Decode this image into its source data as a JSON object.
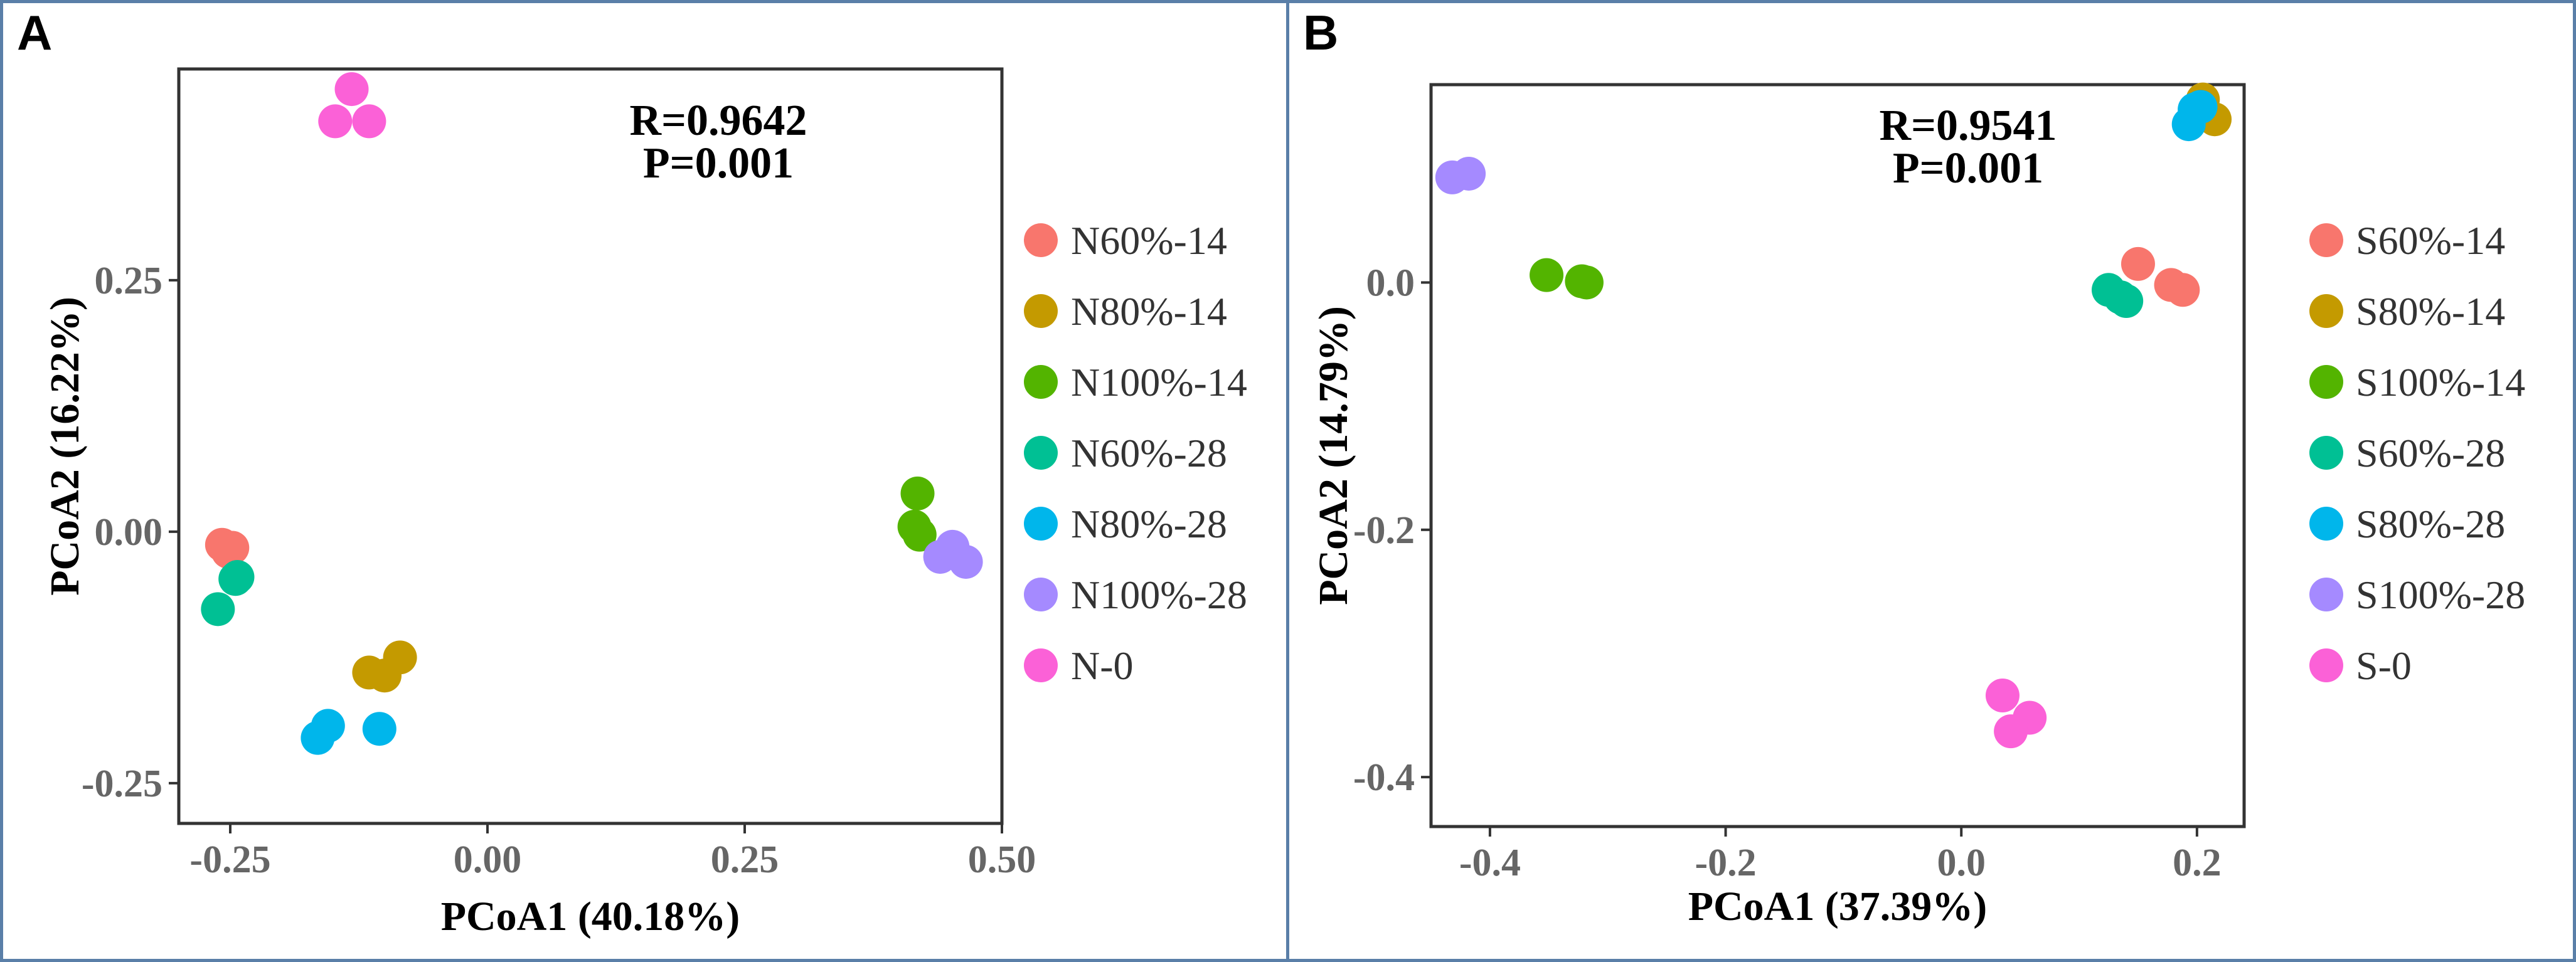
{
  "chart_data": [
    {
      "panel_label": "A",
      "type": "scatter",
      "xlabel": "PCoA1 (40.18%)",
      "ylabel": "PCoA2 (16.22%)",
      "xlim": [
        -0.3,
        0.5
      ],
      "ylim": [
        -0.29,
        0.46
      ],
      "xticks": [
        -0.25,
        0.0,
        0.25,
        0.5
      ],
      "xtick_labels": [
        "-0.25",
        "0.00",
        "0.25",
        "0.50"
      ],
      "yticks": [
        -0.25,
        0.0,
        0.25
      ],
      "ytick_labels": [
        "-0.25",
        "0.00",
        "0.25"
      ],
      "grid": false,
      "legend_position": "right",
      "annotations": [
        "R=0.9642",
        "P=0.001"
      ],
      "series": [
        {
          "name": "N60%-14",
          "color": "#F8766D",
          "points": [
            [
              -0.258,
              -0.013
            ],
            [
              -0.248,
              -0.016
            ],
            [
              -0.252,
              -0.02
            ]
          ]
        },
        {
          "name": "N80%-14",
          "color": "#C49A00",
          "points": [
            [
              -0.115,
              -0.14
            ],
            [
              -0.1,
              -0.143
            ],
            [
              -0.085,
              -0.125
            ]
          ]
        },
        {
          "name": "N100%-14",
          "color": "#53B400",
          "points": [
            [
              0.418,
              0.038
            ],
            [
              0.415,
              0.005
            ],
            [
              0.42,
              -0.003
            ]
          ]
        },
        {
          "name": "N60%-28",
          "color": "#00C094",
          "points": [
            [
              -0.262,
              -0.077
            ],
            [
              -0.245,
              -0.047
            ],
            [
              -0.243,
              -0.045
            ]
          ]
        },
        {
          "name": "N80%-28",
          "color": "#00B6EB",
          "points": [
            [
              -0.165,
              -0.205
            ],
            [
              -0.155,
              -0.193
            ],
            [
              -0.105,
              -0.196
            ]
          ]
        },
        {
          "name": "N100%-28",
          "color": "#A58AFF",
          "points": [
            [
              0.44,
              -0.025
            ],
            [
              0.452,
              -0.015
            ],
            [
              0.465,
              -0.03
            ]
          ]
        },
        {
          "name": "N-0",
          "color": "#FB61D7",
          "points": [
            [
              -0.132,
              0.44
            ],
            [
              -0.148,
              0.408
            ],
            [
              -0.115,
              0.408
            ]
          ]
        }
      ]
    },
    {
      "panel_label": "B",
      "type": "scatter",
      "xlabel": "PCoA1 (37.39%)",
      "ylabel": "PCoA2 (14.79%)",
      "xlim": [
        -0.45,
        0.24
      ],
      "ylim": [
        -0.44,
        0.16
      ],
      "xticks": [
        -0.4,
        -0.2,
        0.0,
        0.2
      ],
      "xtick_labels": [
        "-0.4",
        "-0.2",
        "0.0",
        "0.2"
      ],
      "yticks": [
        -0.4,
        -0.2,
        0.0
      ],
      "ytick_labels": [
        "-0.4",
        "-0.2",
        "0.0"
      ],
      "grid": false,
      "legend_position": "right",
      "annotations": [
        "R=0.9541",
        "P=0.001"
      ],
      "series": [
        {
          "name": "S60%-14",
          "color": "#F8766D",
          "points": [
            [
              0.15,
              0.015
            ],
            [
              0.178,
              -0.002
            ],
            [
              0.188,
              -0.006
            ]
          ]
        },
        {
          "name": "S80%-14",
          "color": "#C49A00",
          "points": [
            [
              0.205,
              0.148
            ],
            [
              0.215,
              0.132
            ],
            [
              0.2,
              0.138
            ]
          ]
        },
        {
          "name": "S100%-14",
          "color": "#53B400",
          "points": [
            [
              -0.352,
              0.006
            ],
            [
              -0.322,
              0.001
            ],
            [
              -0.318,
              0.0
            ]
          ]
        },
        {
          "name": "S60%-28",
          "color": "#00C094",
          "points": [
            [
              0.125,
              -0.006
            ],
            [
              0.135,
              -0.012
            ],
            [
              0.14,
              -0.015
            ]
          ]
        },
        {
          "name": "S80%-28",
          "color": "#00B6EB",
          "points": [
            [
              0.193,
              0.128
            ],
            [
              0.198,
              0.14
            ],
            [
              0.203,
              0.142
            ]
          ]
        },
        {
          "name": "S100%-28",
          "color": "#A58AFF",
          "points": [
            [
              -0.432,
              0.085
            ],
            [
              -0.418,
              0.088
            ]
          ]
        },
        {
          "name": "S-0",
          "color": "#FB61D7",
          "points": [
            [
              0.035,
              -0.334
            ],
            [
              0.058,
              -0.352
            ],
            [
              0.042,
              -0.363
            ]
          ]
        }
      ]
    }
  ]
}
